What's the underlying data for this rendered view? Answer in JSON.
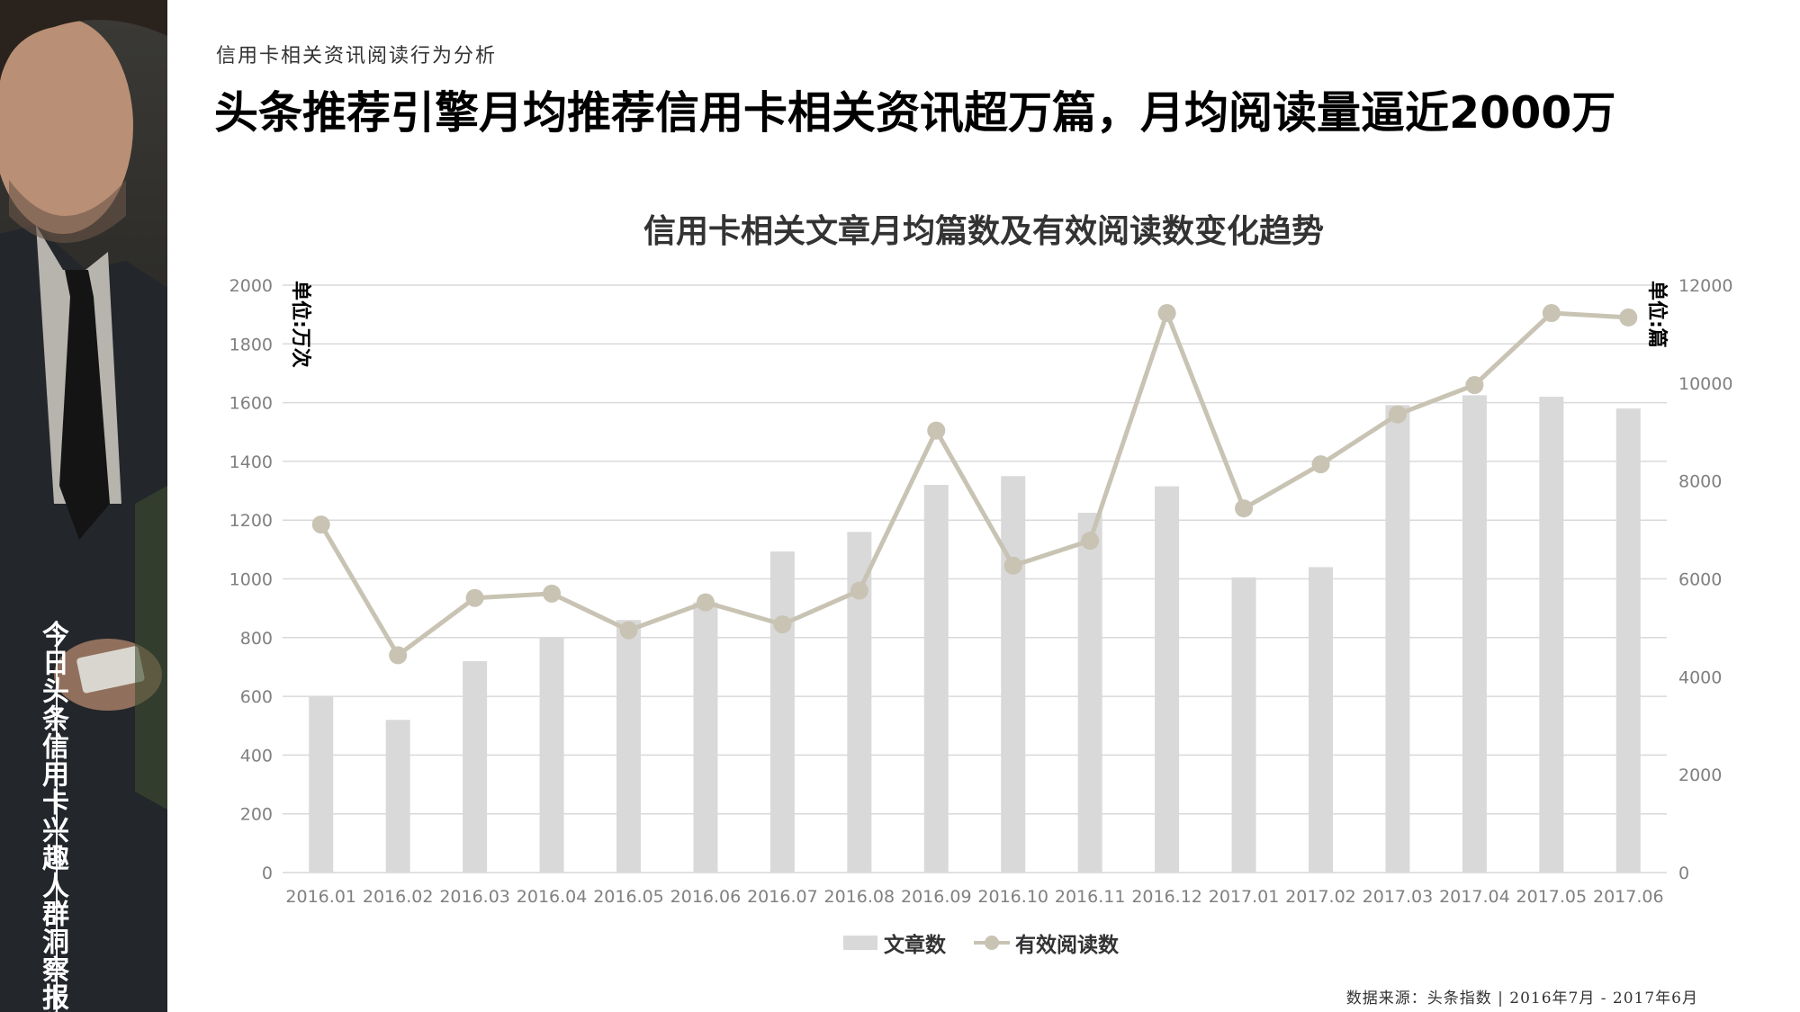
{
  "side_panel": {
    "title": "今日头条信用卡兴趣人群洞察报告"
  },
  "header": {
    "subtitle": "信用卡相关资讯阅读行为分析",
    "headline": "头条推荐引擎月均推荐信用卡相关资讯超万篇，月均阅读量逼近2000万"
  },
  "footer": {
    "source": "数据来源：头条指数 | 2016年7月 - 2017年6月"
  },
  "colors": {
    "bar": "#d9d9d9",
    "line": "#c8c3b3",
    "grid": "#d9d9d9"
  },
  "chart_data": {
    "type": "bar+line",
    "title": "信用卡相关文章月均篇数及有效阅读数变化趋势",
    "left_axis_unit": "单位:万次",
    "right_axis_unit": "单位:篇",
    "left_ylim": [
      0,
      2000
    ],
    "left_ticks": [
      0,
      200,
      400,
      600,
      800,
      1000,
      1200,
      1400,
      1600,
      1800,
      2000
    ],
    "right_ylim": [
      0,
      12000
    ],
    "right_ticks": [
      0,
      2000,
      4000,
      6000,
      8000,
      10000,
      12000
    ],
    "categories": [
      "2016.01",
      "2016.02",
      "2016.03",
      "2016.04",
      "2016.05",
      "2016.06",
      "2016.07",
      "2016.08",
      "2016.09",
      "2016.10",
      "2016.11",
      "2016.12",
      "2017.01",
      "2017.02",
      "2017.03",
      "2017.04",
      "2017.05",
      "2017.06"
    ],
    "legend_position": "bottom",
    "grid": true,
    "series": [
      {
        "name": "文章数",
        "type": "bar",
        "axis": "right",
        "values": [
          3600,
          3120,
          4320,
          4800,
          5160,
          5520,
          6560,
          6960,
          7920,
          8100,
          7350,
          7890,
          6030,
          6240,
          9550,
          9750,
          9720,
          9480
        ]
      },
      {
        "name": "有效阅读数",
        "type": "line",
        "axis": "left",
        "values": [
          1185,
          740,
          935,
          950,
          825,
          920,
          845,
          960,
          1505,
          1045,
          1130,
          1905,
          1240,
          1390,
          1560,
          1660,
          1905,
          1890
        ]
      }
    ]
  }
}
